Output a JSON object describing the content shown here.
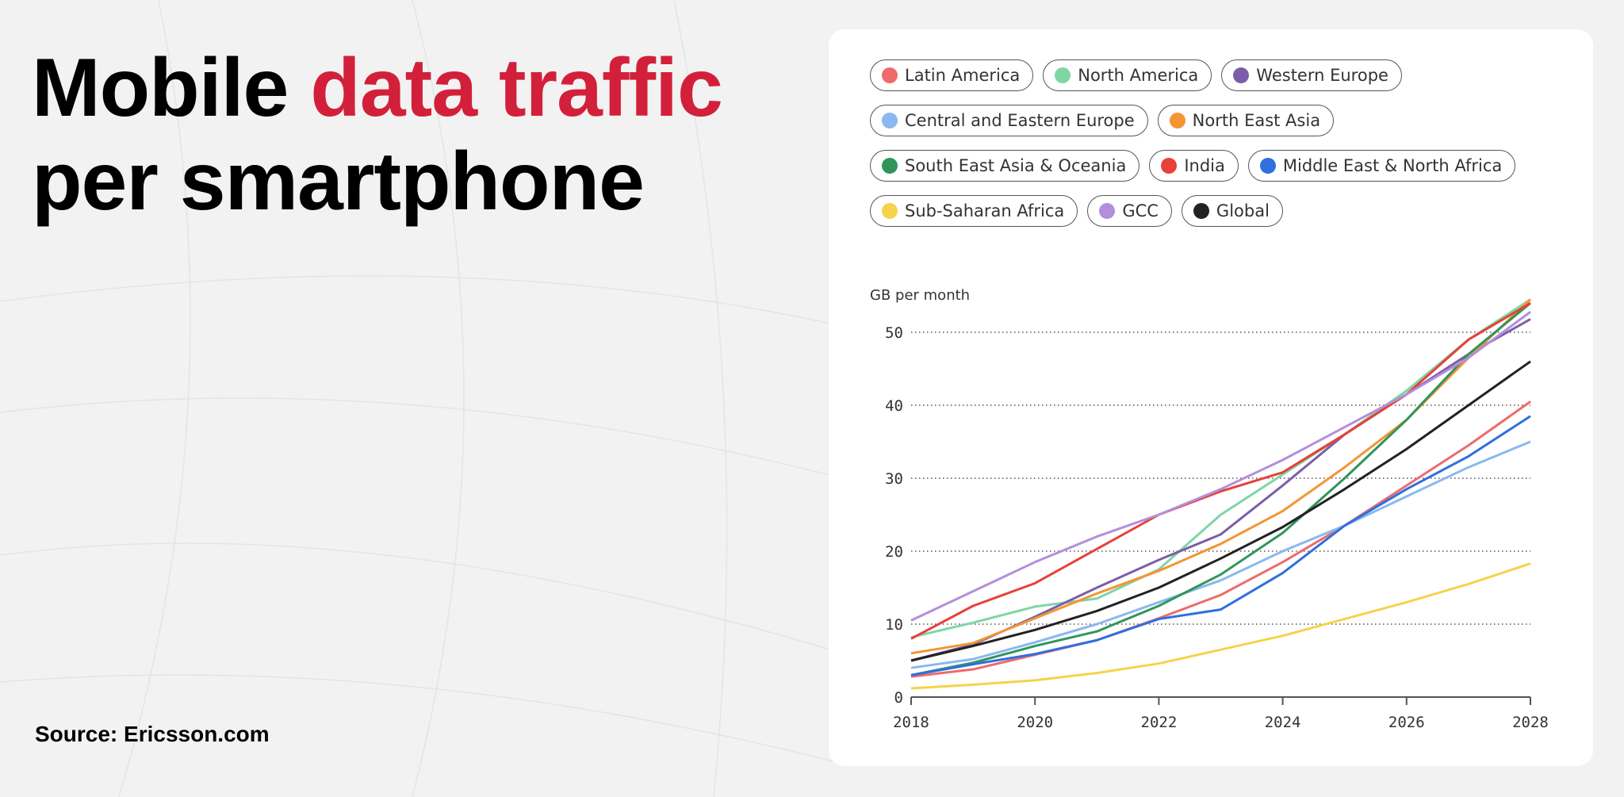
{
  "title": {
    "part1": "Mobile ",
    "accent": "data traffic",
    "part2": "per smartphone"
  },
  "source": "Source: Ericsson.com",
  "colors": {
    "accent": "#d3203a",
    "background": "#f2f2f2",
    "card": "#ffffff"
  },
  "chart_data": {
    "type": "line",
    "title": "",
    "ylabel": "GB per month",
    "xlabel": "",
    "x": [
      2018,
      2019,
      2020,
      2021,
      2022,
      2023,
      2024,
      2025,
      2026,
      2027,
      2028
    ],
    "xticks": [
      2018,
      2020,
      2022,
      2024,
      2026,
      2028
    ],
    "yticks": [
      0,
      10,
      20,
      30,
      40,
      50
    ],
    "xlim": [
      2018,
      2028
    ],
    "ylim": [
      0,
      55
    ],
    "grid": "horizontal dotted",
    "legend_placement": "top",
    "legend_rows": [
      [
        0,
        1,
        2
      ],
      [
        3,
        4
      ],
      [
        5,
        6,
        7
      ],
      [
        8,
        9,
        10
      ]
    ],
    "series": [
      {
        "name": "Latin America",
        "color": "#ee6b6b",
        "values": [
          2.8,
          3.8,
          5.8,
          7.8,
          10.8,
          14,
          18.5,
          23.5,
          29,
          34.5,
          40.5
        ]
      },
      {
        "name": "North America",
        "color": "#7ed6a5",
        "values": [
          8.2,
          10.2,
          12.4,
          13.5,
          17.5,
          25,
          30.5,
          36,
          42,
          49,
          54.5
        ]
      },
      {
        "name": "Western Europe",
        "color": "#7b5ea7",
        "values": [
          5,
          7.2,
          11,
          15,
          18.8,
          22.3,
          29,
          36,
          41.5,
          47,
          51.8
        ]
      },
      {
        "name": "Central and Eastern Europe",
        "color": "#8ab8f0",
        "values": [
          4,
          5.2,
          7.5,
          10,
          13,
          16,
          20,
          23.5,
          27.5,
          31.5,
          35
        ]
      },
      {
        "name": "North East Asia",
        "color": "#f39533",
        "values": [
          6,
          7.4,
          10.8,
          14.2,
          17.3,
          21,
          25.5,
          31.5,
          38,
          46.5,
          54.5
        ]
      },
      {
        "name": "South East Asia & Oceania",
        "color": "#31955a",
        "values": [
          3,
          4.7,
          7,
          9,
          12.5,
          16.8,
          22.5,
          30,
          38,
          47,
          54
        ]
      },
      {
        "name": "India",
        "color": "#e8403a",
        "values": [
          8,
          12.5,
          15.6,
          20.3,
          25,
          28.2,
          30.8,
          36,
          41.5,
          49,
          54
        ]
      },
      {
        "name": "Middle East & North Africa",
        "color": "#2f6fe0",
        "values": [
          3,
          4.5,
          5.9,
          7.8,
          10.7,
          12,
          17,
          23.5,
          28.5,
          33,
          38.5
        ]
      },
      {
        "name": "Sub-Saharan Africa",
        "color": "#f5d34a",
        "values": [
          1.2,
          1.7,
          2.3,
          3.3,
          4.6,
          6.5,
          8.4,
          10.7,
          13,
          15.5,
          18.3
        ]
      },
      {
        "name": "GCC",
        "color": "#b48edc",
        "values": [
          10.5,
          14.5,
          18.5,
          22,
          25,
          28.5,
          32.5,
          37,
          41.5,
          46.5,
          52.8
        ]
      },
      {
        "name": "Global",
        "color": "#222222",
        "values": [
          5,
          7,
          9.2,
          11.8,
          15,
          19,
          23.3,
          28.5,
          34,
          40,
          46
        ]
      }
    ]
  }
}
